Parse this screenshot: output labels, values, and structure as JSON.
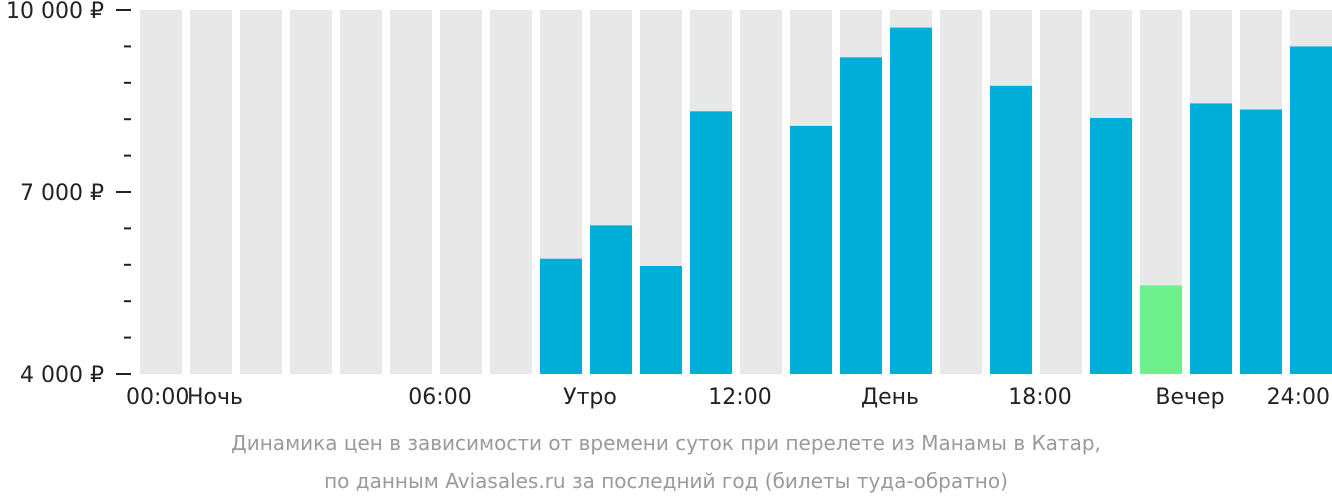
{
  "chart_data": {
    "type": "bar",
    "title": "",
    "xlabel": "",
    "ylabel": "",
    "ylim": [
      4000,
      10000
    ],
    "y_major_ticks": [
      {
        "value": 4000,
        "label": "4 000 ₽"
      },
      {
        "value": 7000,
        "label": "7 000 ₽"
      },
      {
        "value": 10000,
        "label": "10 000 ₽"
      }
    ],
    "y_minor_ticks": [
      4600,
      5200,
      5800,
      6400,
      7600,
      8200,
      8800,
      9400
    ],
    "hours": [
      0,
      1,
      2,
      3,
      4,
      5,
      6,
      7,
      8,
      9,
      10,
      11,
      12,
      13,
      14,
      15,
      16,
      17,
      18,
      19,
      20,
      21,
      22,
      23
    ],
    "values": [
      null,
      null,
      null,
      null,
      null,
      null,
      null,
      null,
      5900,
      6450,
      5780,
      8330,
      null,
      8090,
      9220,
      9710,
      null,
      8750,
      null,
      8220,
      5460,
      8460,
      8360,
      9400
    ],
    "highlight": [
      false,
      false,
      false,
      false,
      false,
      false,
      false,
      false,
      false,
      false,
      false,
      false,
      false,
      false,
      false,
      false,
      false,
      false,
      false,
      false,
      true,
      false,
      false,
      false
    ],
    "x_labels": [
      {
        "pos": 0,
        "label": "00:00"
      },
      {
        "pos": 1.5,
        "label": "Ночь"
      },
      {
        "pos": 6,
        "label": "06:00"
      },
      {
        "pos": 9,
        "label": "Утро"
      },
      {
        "pos": 12,
        "label": "12:00"
      },
      {
        "pos": 15,
        "label": "День"
      },
      {
        "pos": 18,
        "label": "18:00"
      },
      {
        "pos": 21,
        "label": "Вечер"
      },
      {
        "pos": 24,
        "label": "24:00"
      }
    ],
    "colors": {
      "background_bar": "#e8e8e8",
      "bar": "#00afd8",
      "highlight_bar": "#6ef08c",
      "axis": "#222222"
    }
  },
  "caption": {
    "line1": "Динамика цен в зависимости от времени суток при перелете из Манамы в Катар,",
    "line2": "по данным Aviasales.ru за последний год (билеты туда-обратно)"
  }
}
